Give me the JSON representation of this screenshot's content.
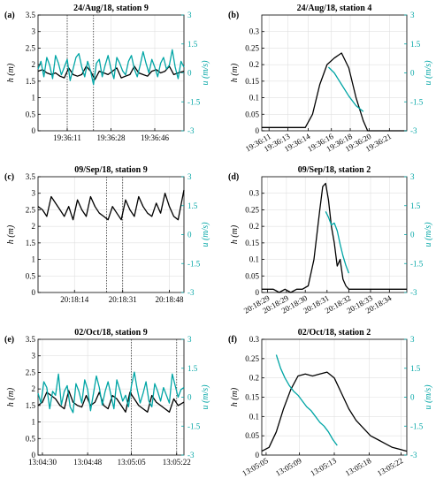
{
  "colors": {
    "h": "#000000",
    "u": "#00a5a5",
    "axis": "#000000",
    "grid": "#e0e0e0"
  },
  "chart_data": [
    {
      "type": "line",
      "panel": "(a)",
      "title": "24/Aug/18, station 9",
      "ylabel": "h (m)",
      "ylabel_right": "u (m/s)",
      "ylim": [
        0,
        3.5
      ],
      "yticks": [
        "0",
        "0.5",
        "1",
        "1.5",
        "2",
        "2.5",
        "3",
        "3.5"
      ],
      "ylim_right": [
        -3,
        3
      ],
      "yticks_right": [
        "-3",
        "-1.5",
        "0",
        "1.5",
        "3"
      ],
      "xlim": [
        0,
        100
      ],
      "xticks": [
        {
          "x": 20,
          "label": "19:36:11"
        },
        {
          "x": 50,
          "label": "19:36:28"
        },
        {
          "x": 80,
          "label": "19:36:46"
        }
      ],
      "xticks_rotated": false,
      "vlines": [
        20,
        38
      ],
      "series": [
        {
          "axis": "left",
          "x": [
            0,
            3,
            6,
            9,
            12,
            15,
            18,
            21,
            24,
            27,
            30,
            33,
            36,
            39,
            42,
            45,
            48,
            51,
            54,
            57,
            60,
            63,
            66,
            69,
            72,
            75,
            78,
            81,
            84,
            87,
            90,
            93,
            96,
            100
          ],
          "values": [
            1.8,
            1.85,
            1.75,
            1.7,
            1.75,
            1.65,
            1.6,
            1.9,
            1.7,
            1.65,
            1.7,
            1.95,
            1.8,
            1.55,
            1.8,
            1.75,
            1.7,
            1.8,
            1.9,
            1.6,
            1.65,
            1.7,
            1.95,
            1.75,
            1.7,
            1.65,
            1.8,
            1.85,
            1.75,
            1.8,
            1.95,
            1.7,
            1.75,
            1.8
          ]
        },
        {
          "axis": "right",
          "x": [
            0,
            2,
            4,
            6,
            8,
            10,
            12,
            14,
            16,
            18,
            20,
            22,
            24,
            26,
            28,
            30,
            32,
            34,
            36,
            38,
            40,
            42,
            44,
            46,
            48,
            50,
            52,
            54,
            56,
            58,
            60,
            62,
            64,
            66,
            68,
            70,
            72,
            74,
            76,
            78,
            80,
            82,
            84,
            86,
            88,
            90,
            92,
            94,
            96,
            98,
            100
          ],
          "values": [
            0.2,
            0.6,
            -0.2,
            0.8,
            0.4,
            -0.3,
            0.9,
            0.5,
            -0.1,
            0.3,
            0.7,
            -0.4,
            0.2,
            0.8,
            1.0,
            0.3,
            -0.2,
            0.6,
            0.1,
            -0.6,
            0.5,
            0.7,
            -0.2,
            0.4,
            0.9,
            0.2,
            -0.3,
            0.8,
            0.5,
            0.1,
            -0.1,
            0.6,
            0.9,
            0.2,
            -0.2,
            0.4,
            1.1,
            0.5,
            0.0,
            0.7,
            0.3,
            -0.2,
            0.5,
            0.8,
            0.2,
            0.4,
            1.2,
            0.3,
            -0.3,
            0.6,
            0.3
          ]
        }
      ]
    },
    {
      "type": "line",
      "panel": "(b)",
      "title": "24/Aug/18, station 4",
      "ylabel": "h (m)",
      "ylabel_right": "u (m/s)",
      "ylim": [
        0,
        0.35
      ],
      "yticks": [
        "0",
        "0.05",
        "0.1",
        "0.15",
        "0.2",
        "0.25",
        "0.3"
      ],
      "ylim_right": [
        -3,
        3
      ],
      "yticks_right": [
        "-3",
        "-1.5",
        "0",
        "1.5",
        "3"
      ],
      "xlim": [
        0,
        100
      ],
      "xticks": [
        {
          "x": 5,
          "label": "19:36:11"
        },
        {
          "x": 18,
          "label": "19:36:13"
        },
        {
          "x": 32,
          "label": "19:36:14"
        },
        {
          "x": 48,
          "label": "19:36:16"
        },
        {
          "x": 61,
          "label": "19:36:18"
        },
        {
          "x": 74,
          "label": "19:36:20"
        },
        {
          "x": 88,
          "label": "19:36:21"
        }
      ],
      "xticks_rotated": true,
      "vlines": [],
      "series": [
        {
          "axis": "left",
          "x": [
            0,
            30,
            35,
            40,
            45,
            50,
            55,
            60,
            65,
            70,
            73,
            80,
            100
          ],
          "values": [
            0.01,
            0.01,
            0.05,
            0.14,
            0.2,
            0.22,
            0.235,
            0.19,
            0.1,
            0.03,
            0.0,
            0.0,
            0.0
          ]
        },
        {
          "axis": "right",
          "x": [
            46,
            50,
            55,
            60,
            65,
            70
          ],
          "values": [
            0.3,
            0.0,
            -0.6,
            -1.2,
            -1.7,
            -2.0
          ]
        }
      ]
    },
    {
      "type": "line",
      "panel": "(c)",
      "title": "09/Sep/18, station 9",
      "ylabel": "h (m)",
      "ylabel_right": "u (m/s)",
      "ylim": [
        0,
        3.5
      ],
      "yticks": [
        "0",
        "0.5",
        "1",
        "1.5",
        "2",
        "2.5",
        "3",
        "3.5"
      ],
      "ylim_right": [
        -3,
        3
      ],
      "yticks_right": [
        "-3",
        "-1.5",
        "0",
        "1.5",
        "3"
      ],
      "xlim": [
        0,
        100
      ],
      "xticks": [
        {
          "x": 25,
          "label": "20:18:14"
        },
        {
          "x": 58,
          "label": "20:18:31"
        },
        {
          "x": 90,
          "label": "20:18:48"
        }
      ],
      "xticks_rotated": false,
      "vlines": [
        47,
        58
      ],
      "series": [
        {
          "axis": "left",
          "x": [
            0,
            3,
            6,
            9,
            12,
            15,
            18,
            21,
            24,
            27,
            30,
            33,
            36,
            39,
            42,
            45,
            48,
            51,
            54,
            57,
            60,
            63,
            66,
            69,
            72,
            75,
            78,
            81,
            84,
            87,
            90,
            93,
            96,
            100
          ],
          "values": [
            2.6,
            2.5,
            2.3,
            2.9,
            2.7,
            2.5,
            2.3,
            2.6,
            2.2,
            2.8,
            2.5,
            2.3,
            2.9,
            2.6,
            2.4,
            2.3,
            2.2,
            2.6,
            2.4,
            2.2,
            2.8,
            2.5,
            2.3,
            2.9,
            2.6,
            2.4,
            2.3,
            2.7,
            2.4,
            3.0,
            2.6,
            2.3,
            2.2,
            3.1
          ]
        }
      ]
    },
    {
      "type": "line",
      "panel": "(d)",
      "title": "09/Sep/18, station 2",
      "ylabel": "h (m)",
      "ylabel_right": "u (m/s)",
      "ylim": [
        0,
        0.35
      ],
      "yticks": [
        "0",
        "0.05",
        "0.1",
        "0.15",
        "0.2",
        "0.25",
        "0.3"
      ],
      "ylim_right": [
        -3,
        3
      ],
      "yticks_right": [
        "-3",
        "-1.5",
        "0",
        "1.5",
        "3"
      ],
      "xlim": [
        0,
        100
      ],
      "xticks": [
        {
          "x": 4,
          "label": "20:18:29"
        },
        {
          "x": 17,
          "label": "20:18:29"
        },
        {
          "x": 30,
          "label": "20:18:30"
        },
        {
          "x": 45,
          "label": "20:18:31"
        },
        {
          "x": 60,
          "label": "20:18:32"
        },
        {
          "x": 75,
          "label": "20:18:33"
        },
        {
          "x": 88,
          "label": "20:18:34"
        }
      ],
      "xticks_rotated": true,
      "vlines": [],
      "series": [
        {
          "axis": "left",
          "x": [
            0,
            8,
            12,
            16,
            20,
            24,
            28,
            32,
            36,
            40,
            42,
            44,
            46,
            48,
            50,
            52,
            54,
            56,
            58,
            60,
            64,
            70,
            80,
            100
          ],
          "values": [
            0.01,
            0.01,
            0.0,
            0.01,
            0.0,
            0.01,
            0.01,
            0.02,
            0.1,
            0.25,
            0.32,
            0.33,
            0.28,
            0.2,
            0.15,
            0.08,
            0.1,
            0.04,
            0.02,
            0.01,
            0.01,
            0.01,
            0.01,
            0.01
          ]
        },
        {
          "axis": "right",
          "x": [
            44,
            46,
            48,
            50,
            52,
            54,
            56,
            58,
            60
          ],
          "values": [
            1.2,
            0.9,
            0.5,
            0.6,
            0.2,
            -0.5,
            -1.1,
            -1.6,
            -2.0
          ]
        }
      ]
    },
    {
      "type": "line",
      "panel": "(e)",
      "title": "02/Oct/18, station 9",
      "ylabel": "h (m)",
      "ylabel_right": "u (m/s)",
      "ylim": [
        0,
        3.5
      ],
      "yticks": [
        "0",
        "0.5",
        "1",
        "1.5",
        "2",
        "2.5",
        "3",
        "3.5"
      ],
      "ylim_right": [
        -3,
        3
      ],
      "yticks_right": [
        "-3",
        "-1.5",
        "0",
        "1.5",
        "3"
      ],
      "xlim": [
        0,
        100
      ],
      "xticks": [
        {
          "x": 3,
          "label": "13:04:30"
        },
        {
          "x": 34,
          "label": "13:04:48"
        },
        {
          "x": 64,
          "label": "13:05:05"
        },
        {
          "x": 95,
          "label": "13:05:22"
        }
      ],
      "xticks_rotated": false,
      "vlines": [
        64,
        95
      ],
      "series": [
        {
          "axis": "left",
          "x": [
            0,
            3,
            6,
            9,
            12,
            15,
            18,
            21,
            24,
            27,
            30,
            33,
            36,
            39,
            42,
            45,
            48,
            51,
            54,
            57,
            60,
            63,
            66,
            69,
            72,
            75,
            78,
            81,
            84,
            87,
            90,
            93,
            96,
            100
          ],
          "values": [
            1.5,
            1.6,
            1.9,
            1.8,
            1.7,
            1.5,
            1.4,
            1.95,
            1.6,
            1.5,
            1.45,
            1.8,
            1.5,
            1.6,
            1.9,
            1.5,
            1.4,
            1.8,
            1.7,
            1.5,
            1.3,
            1.9,
            1.7,
            1.5,
            1.4,
            1.3,
            1.8,
            1.6,
            1.5,
            1.4,
            1.3,
            1.7,
            1.5,
            1.6
          ]
        },
        {
          "axis": "right",
          "x": [
            0,
            2,
            4,
            6,
            8,
            10,
            12,
            14,
            16,
            18,
            20,
            22,
            24,
            26,
            28,
            30,
            32,
            34,
            36,
            38,
            40,
            42,
            44,
            46,
            48,
            50,
            52,
            54,
            56,
            58,
            60,
            62,
            64,
            66,
            68,
            70,
            72,
            74,
            76,
            78,
            80,
            82,
            84,
            86,
            88,
            90,
            92,
            94,
            96,
            98,
            100
          ],
          "values": [
            0.2,
            -0.3,
            0.8,
            0.5,
            -0.6,
            0.3,
            0.1,
            1.2,
            -0.4,
            0.3,
            0.6,
            -0.5,
            -0.8,
            0.7,
            0.3,
            -0.3,
            0.9,
            0.4,
            -0.7,
            0.2,
            1.1,
            0.5,
            -0.4,
            0.3,
            0.8,
            0.1,
            -0.6,
            0.9,
            0.4,
            -0.2,
            0.1,
            -0.5,
            0.6,
            1.3,
            0.4,
            -0.3,
            0.2,
            0.8,
            -0.2,
            -0.5,
            0.7,
            0.3,
            -0.2,
            0.5,
            0.1,
            -0.3,
            1.2,
            0.6,
            0.0,
            0.4,
            0.5
          ]
        }
      ]
    },
    {
      "type": "line",
      "panel": "(f)",
      "title": "02/Oct/18, station 2",
      "ylabel": "h (m)",
      "ylabel_right": "u (m/s)",
      "ylim": [
        0,
        0.3
      ],
      "yticks": [
        "0",
        "0.05",
        "0.1",
        "0.15",
        "0.2",
        "0.25",
        "0.3"
      ],
      "ylim_right": [
        -3,
        3
      ],
      "yticks_right": [
        "-3",
        "-1.5",
        "0",
        "1.5",
        "3"
      ],
      "xlim": [
        0,
        100
      ],
      "xticks": [
        {
          "x": 3,
          "label": "13:05:05"
        },
        {
          "x": 26,
          "label": "13:05:09"
        },
        {
          "x": 50,
          "label": "13:05:13"
        },
        {
          "x": 74,
          "label": "13:05:18"
        },
        {
          "x": 96,
          "label": "13:05:22"
        }
      ],
      "xticks_rotated": true,
      "vlines": [],
      "series": [
        {
          "axis": "left",
          "x": [
            0,
            5,
            10,
            15,
            20,
            25,
            30,
            35,
            40,
            45,
            50,
            55,
            60,
            65,
            70,
            75,
            80,
            85,
            90,
            95,
            100
          ],
          "values": [
            0.01,
            0.02,
            0.06,
            0.12,
            0.17,
            0.205,
            0.21,
            0.205,
            0.21,
            0.215,
            0.2,
            0.16,
            0.12,
            0.09,
            0.07,
            0.05,
            0.04,
            0.03,
            0.02,
            0.015,
            0.01
          ]
        },
        {
          "axis": "right",
          "x": [
            10,
            13,
            16,
            19,
            22,
            25,
            28,
            31,
            34,
            37,
            40,
            43,
            46,
            49,
            52
          ],
          "values": [
            2.2,
            1.5,
            1.0,
            0.6,
            0.3,
            0.1,
            -0.2,
            -0.5,
            -0.7,
            -1.0,
            -1.3,
            -1.5,
            -1.8,
            -2.2,
            -2.5
          ]
        }
      ]
    }
  ]
}
